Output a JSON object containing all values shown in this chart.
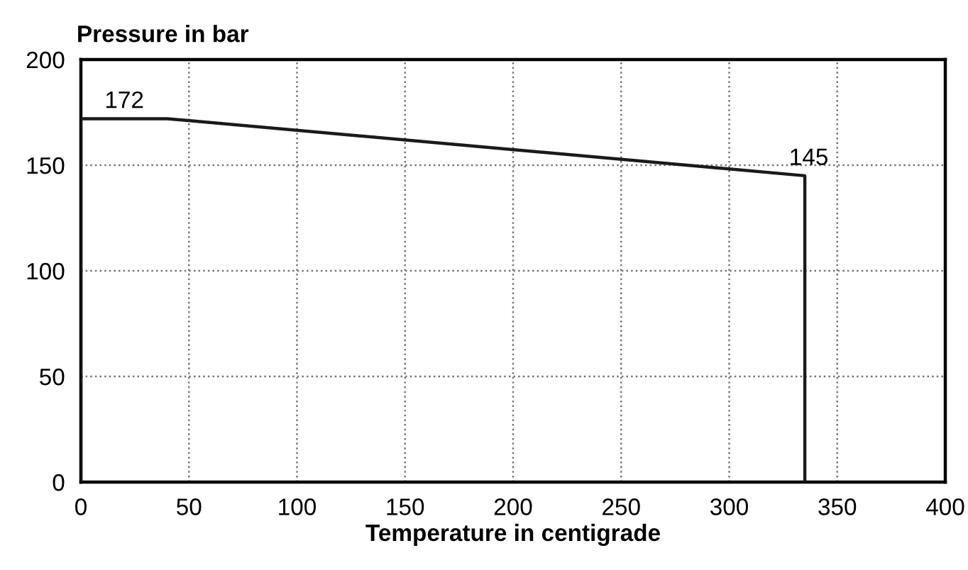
{
  "chart_data": {
    "type": "line",
    "xlabel": "Temperature in centigrade",
    "ylabel": "Pressure in bar",
    "x": [
      0,
      0,
      40,
      335,
      335
    ],
    "series": [
      {
        "color": "#1a1a1a",
        "values": [
          0,
          172,
          172,
          145,
          0
        ]
      }
    ],
    "xlim": [
      0,
      400
    ],
    "xticks": [
      0,
      50,
      100,
      150,
      200,
      250,
      300,
      350,
      400
    ],
    "ylim": [
      0,
      200
    ],
    "yticks": [
      0,
      50,
      100,
      150,
      200
    ],
    "grid": true,
    "marker": "none",
    "line_style": "solid",
    "annotations": [
      {
        "text": "172",
        "x": 0,
        "y": 172
      },
      {
        "text": "145",
        "x": 335,
        "y": 145
      }
    ]
  }
}
